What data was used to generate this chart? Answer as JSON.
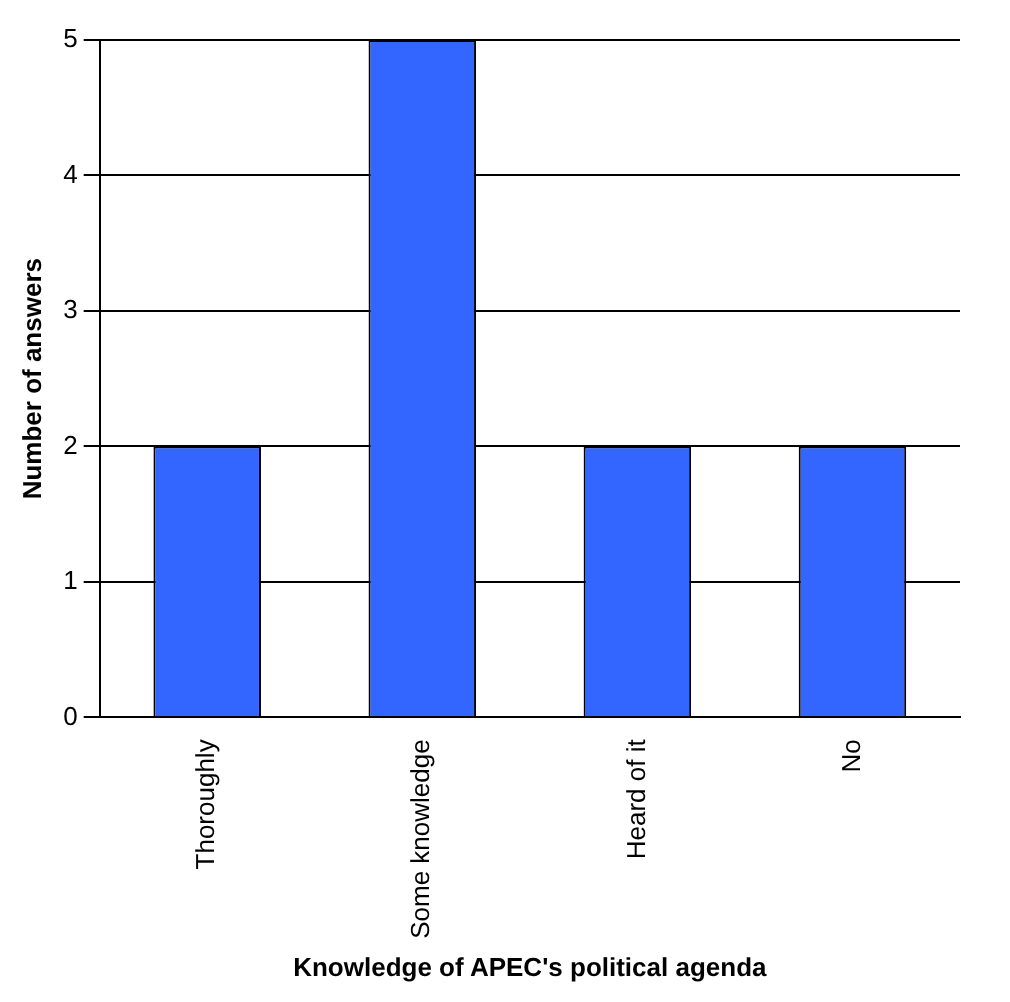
{
  "chart_data": {
    "type": "bar",
    "xlabel": "Knowledge of APEC's political agenda",
    "ylabel": "Number of answers",
    "categories": [
      "Thoroughly",
      "Some knowledge",
      "Heard of it",
      "No"
    ],
    "values": [
      2,
      5,
      2,
      2
    ],
    "color": "#3366ff",
    "ylim": [
      0,
      5
    ],
    "yticks": [
      0,
      1,
      2,
      3,
      4,
      5
    ],
    "grid": "y"
  }
}
